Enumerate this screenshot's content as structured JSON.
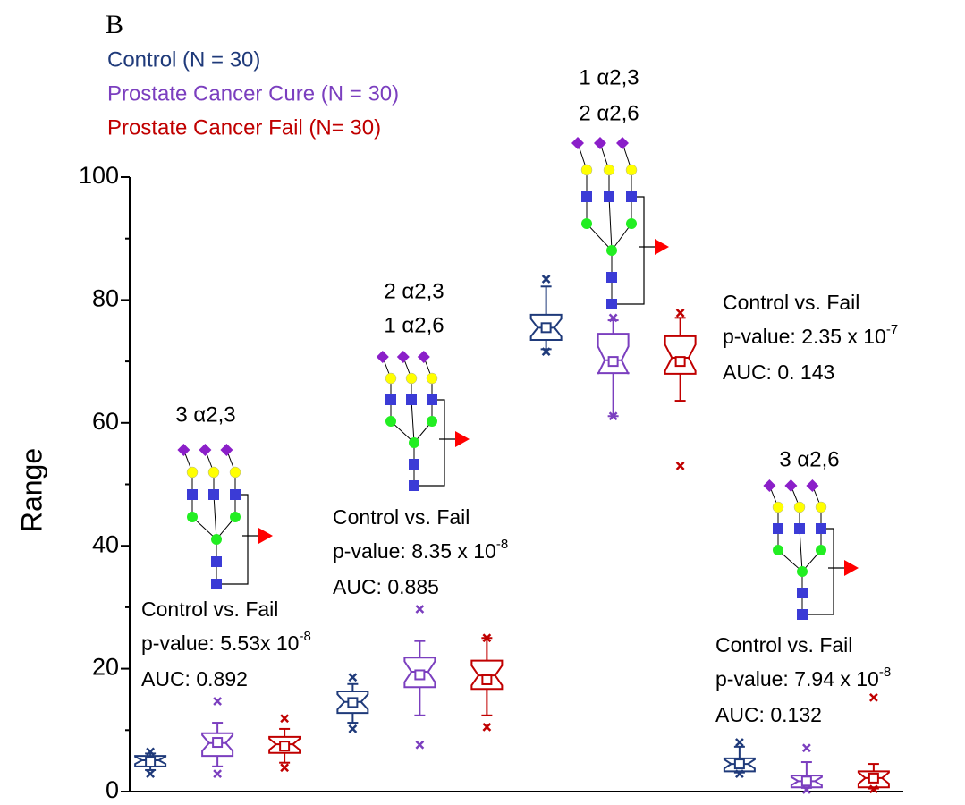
{
  "chart_data": {
    "type": "box",
    "panel_label": "B",
    "y_label": "Range",
    "categories": [
      null,
      null,
      null,
      null
    ],
    "ylim": [
      0,
      100
    ],
    "yticks": [
      0,
      20,
      40,
      60,
      80,
      100
    ],
    "yminorticks": [
      10,
      30,
      50,
      70,
      90
    ],
    "series": [
      {
        "name": "Control (N = 30)",
        "color": "#1f3a7a",
        "whisker_low": [
          3.5,
          11.2,
          72.0,
          3.1
        ],
        "q1": [
          4.1,
          12.8,
          73.5,
          3.3
        ],
        "median": [
          5.1,
          14.6,
          75.5,
          4.5
        ],
        "q3": [
          5.8,
          16.3,
          77.6,
          5.4
        ],
        "whisker_high": [
          6.2,
          17.5,
          82.2,
          7.3
        ],
        "mean": [
          4.8,
          14.5,
          75.5,
          4.5
        ],
        "min": [
          2.9,
          10.2,
          71.6,
          2.9
        ],
        "max": [
          6.5,
          18.6,
          83.4,
          8.0
        ]
      },
      {
        "name": "Prostate  Cancer Cure (N = 30)",
        "color": "#7b3fbf",
        "whisker_low": [
          4.1,
          12.4,
          61.1,
          0.6
        ],
        "q1": [
          5.8,
          17.0,
          68.1,
          0.7
        ],
        "median": [
          7.9,
          19.5,
          70.2,
          1.7
        ],
        "q3": [
          9.5,
          21.8,
          74.5,
          2.6
        ],
        "whisker_high": [
          11.2,
          24.5,
          76.7,
          4.8
        ],
        "mean": [
          8.0,
          19.0,
          70.0,
          1.7
        ],
        "min": [
          2.9,
          7.6,
          61.1,
          0.3
        ],
        "max": [
          14.7,
          29.7,
          77.1,
          7.1
        ]
      },
      {
        "name": "Prostate Cancer Fail (N= 30)",
        "color": "#c00000",
        "whisker_low": [
          4.7,
          12.4,
          63.6,
          0.5
        ],
        "q1": [
          6.3,
          16.7,
          68.0,
          0.7
        ],
        "median": [
          7.7,
          18.9,
          70.6,
          2.2
        ],
        "q3": [
          8.9,
          21.3,
          74.1,
          3.3
        ],
        "whisker_high": [
          10.2,
          25.0,
          77.1,
          4.5
        ],
        "mean": [
          7.4,
          18.2,
          70.0,
          2.2
        ],
        "min": [
          3.9,
          10.5,
          53.0,
          0.4
        ],
        "max": [
          11.9,
          25.0,
          77.9,
          15.3
        ]
      }
    ],
    "glycan_labels": [
      "3 α2,3",
      "2 α2,3",
      "1 α2,6",
      "1 α2,3",
      "2 α2,6",
      "3 α2,6"
    ],
    "stats": [
      {
        "comparison": "Control vs. Fail",
        "p_value": "p-value: 5.53x 10",
        "exponent": "-8",
        "auc": "AUC: 0.892"
      },
      {
        "comparison": "Control vs. Fail",
        "p_value": "p-value: 8.35 x 10",
        "exponent": "-8",
        "auc": "AUC: 0.885"
      },
      {
        "comparison": "Control vs. Fail",
        "p_value": "p-value: 2.35 x 10",
        "exponent": "-7",
        "auc": "AUC: 0. 143"
      },
      {
        "comparison": "Control vs. Fail",
        "p_value": "p-value: 7.94 x 10",
        "exponent": "-8",
        "auc": "AUC: 0.132"
      }
    ]
  }
}
